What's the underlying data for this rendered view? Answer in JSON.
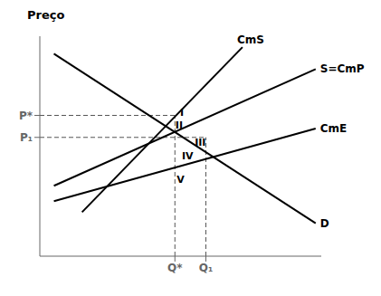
{
  "chart_data": {
    "type": "line",
    "ylabel": "Preço",
    "xlim": [
      0,
      10
    ],
    "ylim": [
      0,
      10
    ],
    "xticks": [
      {
        "value": 4.8,
        "label": "Q*"
      },
      {
        "value": 5.9,
        "label": "Q₁"
      }
    ],
    "yticks": [
      {
        "value": 6.4,
        "label": "P*"
      },
      {
        "value": 5.4,
        "label": "P₁"
      }
    ],
    "grid": false,
    "series": [
      {
        "name": "D",
        "color": "#000000",
        "x": [
          0.5,
          9.8
        ],
        "values": [
          9.2,
          1.5
        ]
      },
      {
        "name": "S=CmP",
        "color": "#000000",
        "x": [
          0.5,
          9.8
        ],
        "values": [
          3.2,
          8.5
        ]
      },
      {
        "name": "CmS",
        "color": "#000000",
        "x": [
          1.5,
          7.2
        ],
        "values": [
          2.0,
          9.5
        ]
      },
      {
        "name": "CmE",
        "color": "#000000",
        "x": [
          0.5,
          9.8
        ],
        "values": [
          2.5,
          5.8
        ]
      }
    ],
    "annotations": [
      {
        "text": "I",
        "x": 5.05,
        "y": 6.55
      },
      {
        "text": "II",
        "x": 4.95,
        "y": 5.95
      },
      {
        "text": "III",
        "x": 5.7,
        "y": 5.2
      },
      {
        "text": "IV",
        "x": 5.25,
        "y": 4.55
      },
      {
        "text": "V",
        "x": 5.0,
        "y": 3.5
      }
    ]
  }
}
